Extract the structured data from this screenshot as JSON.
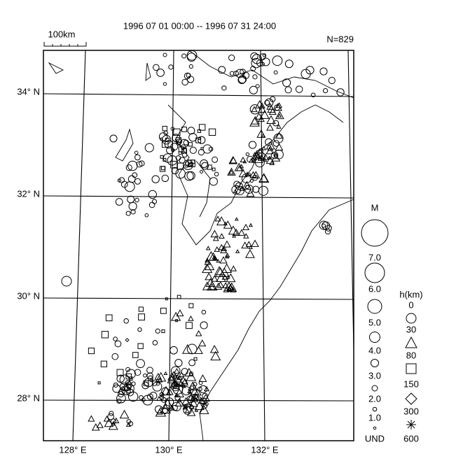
{
  "header": {
    "period": "1996 07 01 00:00 -- 1996 07 31 24:00",
    "scale": "100km",
    "count": "N=829"
  },
  "map": {
    "latitudes": [
      "34° N",
      "32° N",
      "30° N",
      "28° N"
    ],
    "longitudes": [
      "128° E",
      "130° E",
      "132° E"
    ]
  },
  "magnitude_legend": {
    "title": "M",
    "labels": [
      "7.0",
      "6.0",
      "5.0",
      "4.0",
      "3.0",
      "2.0",
      "1.0",
      "UND"
    ]
  },
  "depth_legend": {
    "title": "h(km)",
    "labels": [
      "0",
      "30",
      "80",
      "150",
      "300",
      "600"
    ]
  }
}
